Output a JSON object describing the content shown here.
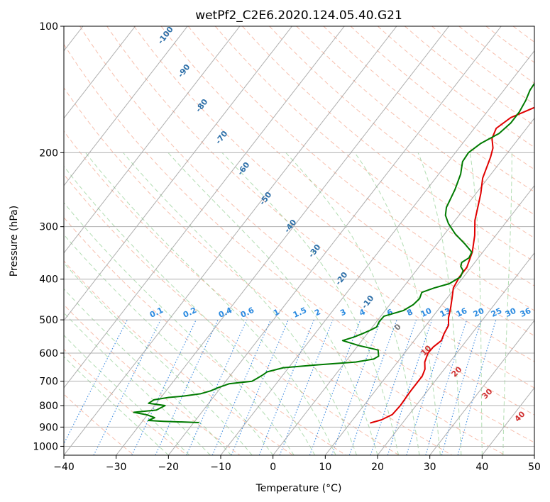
{
  "chart_data": {
    "type": "line",
    "title": "wetPf2_C2E6.2020.124.05.40.G21",
    "xlabel": "Temperature (°C)",
    "ylabel": "Pressure (hPa)",
    "xlim": [
      -40,
      50
    ],
    "ylim": [
      1050,
      100
    ],
    "y_scale": "log",
    "x_ticks": [
      -40,
      -30,
      -20,
      -10,
      0,
      10,
      20,
      30,
      40,
      50
    ],
    "y_ticks": [
      100,
      200,
      300,
      400,
      500,
      600,
      700,
      800,
      900,
      1000
    ],
    "grid": true,
    "colors": {
      "temperature": "#e00000",
      "dewpoint": "#007a00",
      "dry_adiabat": "#f08a6a",
      "moist_adiabat": "#66bb66",
      "mixing_ratio": "#2a7fdc",
      "isotherm": "#808080"
    },
    "series": [
      {
        "color": "#e00000",
        "points": [
          [
            13.8,
            880
          ],
          [
            15.5,
            865
          ],
          [
            16.8,
            840
          ],
          [
            17.0,
            800
          ],
          [
            16.8,
            740
          ],
          [
            16.8,
            680
          ],
          [
            16.3,
            655
          ],
          [
            15.2,
            630
          ],
          [
            14.5,
            600
          ],
          [
            14.6,
            580
          ],
          [
            15.2,
            560
          ],
          [
            14.7,
            540
          ],
          [
            14.3,
            515
          ],
          [
            13.2,
            495
          ],
          [
            12.2,
            470
          ],
          [
            11.0,
            445
          ],
          [
            9.7,
            420
          ],
          [
            9.2,
            395
          ],
          [
            9.2,
            375
          ],
          [
            8.0,
            345
          ],
          [
            6.0,
            315
          ],
          [
            3.8,
            290
          ],
          [
            2.4,
            270
          ],
          [
            0.9,
            250
          ],
          [
            -1.0,
            230
          ],
          [
            -2.6,
            205
          ],
          [
            -3.5,
            195
          ],
          [
            -5.1,
            185
          ],
          [
            -5.8,
            175
          ],
          [
            -4.6,
            165
          ],
          [
            -1.2,
            155
          ],
          [
            2.5,
            145
          ],
          [
            6.1,
            135
          ],
          [
            8.7,
            125
          ],
          [
            10.0,
            117
          ],
          [
            12.3,
            110
          ],
          [
            15.4,
            105
          ],
          [
            17.1,
            100
          ]
        ]
      },
      {
        "color": "#007a00",
        "points": [
          [
            -19,
            878
          ],
          [
            -26,
            872
          ],
          [
            -29,
            868
          ],
          [
            -28.2,
            855
          ],
          [
            -30,
            842
          ],
          [
            -33.0,
            830
          ],
          [
            -29,
            820
          ],
          [
            -28,
            800
          ],
          [
            -31.5,
            790
          ],
          [
            -31,
            775
          ],
          [
            -28.5,
            765
          ],
          [
            -26.0,
            760
          ],
          [
            -23.0,
            750
          ],
          [
            -21.5,
            738
          ],
          [
            -20.5,
            725
          ],
          [
            -19,
            710
          ],
          [
            -15,
            700
          ],
          [
            -14.5,
            690
          ],
          [
            -13.8,
            675
          ],
          [
            -13.5,
            665
          ],
          [
            -11,
            650
          ],
          [
            -5,
            640
          ],
          [
            2.0,
            630
          ],
          [
            5.0,
            620
          ],
          [
            5.5,
            610
          ],
          [
            4.5,
            590
          ],
          [
            0,
            575
          ],
          [
            -3.7,
            560
          ],
          [
            -2.1,
            550
          ],
          [
            -1.0,
            540
          ],
          [
            0.0,
            530
          ],
          [
            0.8,
            520
          ],
          [
            0.5,
            505
          ],
          [
            0.6,
            490
          ],
          [
            3.5,
            475
          ],
          [
            4.5,
            460
          ],
          [
            4.8,
            445
          ],
          [
            4.3,
            430
          ],
          [
            6.0,
            420
          ],
          [
            8.3,
            410
          ],
          [
            9.4,
            395
          ],
          [
            9.0,
            382
          ],
          [
            7.9,
            373
          ],
          [
            7.5,
            365
          ],
          [
            8.2,
            356
          ],
          [
            7.9,
            345
          ],
          [
            5.4,
            330
          ],
          [
            2.0,
            312
          ],
          [
            -0.8,
            295
          ],
          [
            -2.6,
            282
          ],
          [
            -3.6,
            270
          ],
          [
            -4.6,
            245
          ],
          [
            -5.8,
            225
          ],
          [
            -7.3,
            210
          ],
          [
            -7.5,
            200
          ],
          [
            -6.5,
            190
          ],
          [
            -4.5,
            180
          ],
          [
            -3.8,
            170
          ],
          [
            -3.8,
            160
          ],
          [
            -4.3,
            150
          ],
          [
            -5.0,
            142
          ],
          [
            -5.2,
            135
          ],
          [
            -4.7,
            127
          ],
          [
            -4.2,
            120
          ],
          [
            -4.2,
            112
          ],
          [
            -3.5,
            105
          ],
          [
            -2.5,
            100
          ]
        ]
      }
    ],
    "dry_adiabat_labels": [
      "-100",
      "-90",
      "-80",
      "-70",
      "-60",
      "-50",
      "-40",
      "-30",
      "-20",
      "-10"
    ],
    "moist_adiabat_labels": [
      "0",
      "10",
      "20",
      "30",
      "40"
    ],
    "mixing_ratio_labels": [
      "0.1",
      "0.2",
      "0.4",
      "0.6",
      "1",
      "1.5",
      "2",
      "3",
      "4",
      "6",
      "8",
      "10",
      "13",
      "16",
      "20",
      "25",
      "30",
      "36"
    ]
  }
}
